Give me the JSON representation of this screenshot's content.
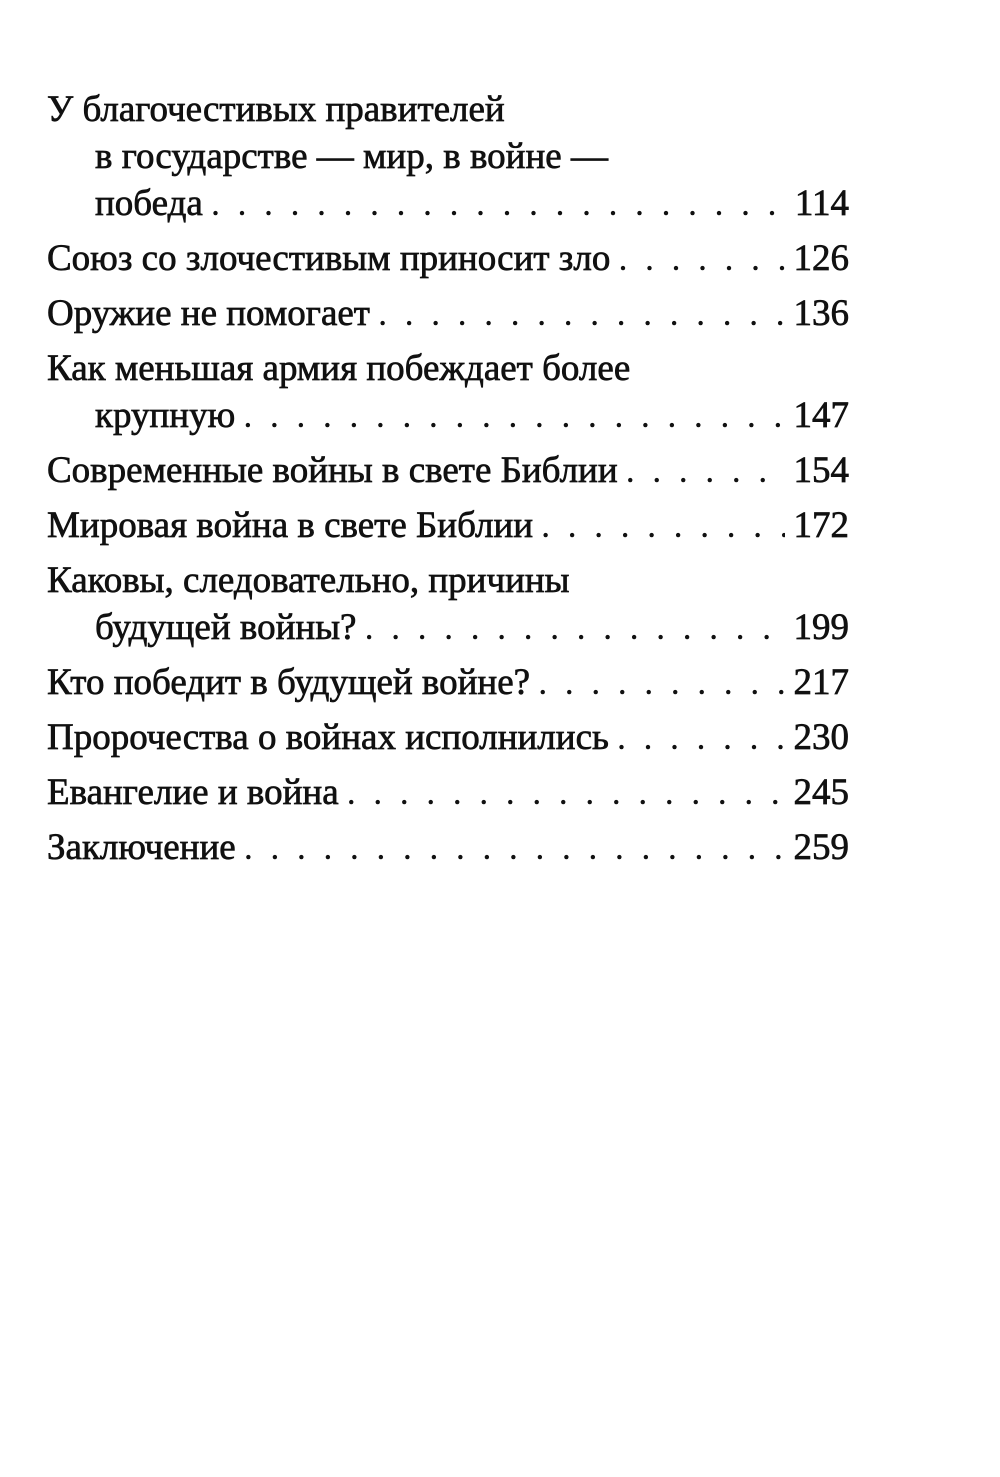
{
  "toc": [
    {
      "lines": [
        "У благочестивых правителей",
        "в государстве — мир, в войне —",
        "победа"
      ],
      "page": "114"
    },
    {
      "lines": [
        "Союз со злочестивым приносит зло"
      ],
      "page": "126"
    },
    {
      "lines": [
        "Оружие не помогает"
      ],
      "page": "136"
    },
    {
      "lines": [
        "Как меньшая армия побеждает более",
        "крупную"
      ],
      "page": "147"
    },
    {
      "lines": [
        "Современные войны в свете Библии"
      ],
      "page": "154"
    },
    {
      "lines": [
        "Мировая война в свете Библии"
      ],
      "page": "172"
    },
    {
      "lines": [
        "Каковы, следовательно, причины",
        "будущей войны?"
      ],
      "page": "199"
    },
    {
      "lines": [
        "Кто победит в будущей войне?"
      ],
      "page": "217"
    },
    {
      "lines": [
        "Пророчества о войнах исполнились"
      ],
      "page": "230"
    },
    {
      "lines": [
        "Евангелие и война"
      ],
      "page": "245"
    },
    {
      "lines": [
        "Заключение"
      ],
      "page": "259"
    }
  ]
}
